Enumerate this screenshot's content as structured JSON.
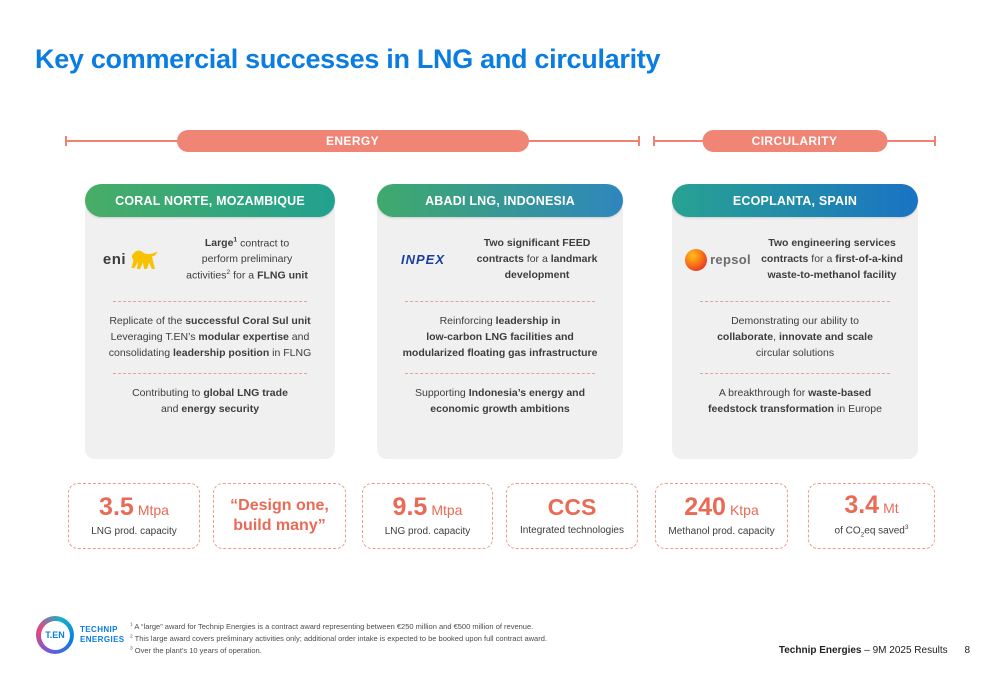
{
  "slide": {
    "title": "Key commercial successes in LNG and circularity",
    "page_number": "8",
    "footer_right_html": "<b>Technip Energies</b> – 9M 2025 Results",
    "logo": {
      "mark": "T.EN",
      "line1": "TECHNIP",
      "line2": "ENERGIES"
    }
  },
  "colors": {
    "brand_blue": "#0b7de1",
    "coral_pill": "#f08576",
    "coral_text": "#e96a55",
    "card_bg": "#f0f0f1",
    "card1_gradient": [
      "#48ad66",
      "#21a18f"
    ],
    "card2_gradient": [
      "#3faa6c",
      "#2e86bd"
    ],
    "card3_gradient": [
      "#28a292",
      "#1a73c4"
    ]
  },
  "bands": [
    {
      "label": "ENERGY"
    },
    {
      "label": "CIRCULARITY"
    }
  ],
  "cards": [
    {
      "header": "CORAL NORTE, MOZAMBIQUE",
      "logo_word": "eni",
      "intro_html": "<b>Large<sup>1</sup></b> contract to<br>perform preliminary<br>activities<sup>2</sup> for a <b>FLNG unit</b>",
      "mid_html": "Replicate of the <b>successful Coral Sul unit</b><br>Leveraging T.EN’s <b>modular expertise</b> and<br>consolidating <b>leadership position</b> in FLNG",
      "bottom_html": "Contributing to <b>global LNG trade</b><br>and <b>energy security</b>"
    },
    {
      "header": "ABADI LNG, INDONESIA",
      "logo_word": "INPEX",
      "intro_html": "<b>Two significant FEED<br>contracts</b> for a <b>landmark<br>development</b>",
      "mid_html": "Reinforcing <b>leadership in<br>low-carbon LNG facilities and<br>modularized floating gas infrastructure</b>",
      "bottom_html": "Supporting <b>Indonesia’s energy and<br>economic growth ambitions</b>"
    },
    {
      "header": "ECOPLANTA, SPAIN",
      "logo_word": "repsol",
      "intro_html": "<b>Two engineering services<br>contracts</b> for a <b>first-of-a-kind<br>waste-to-methanol facility</b>",
      "mid_html": "Demonstrating our ability to<br><b>collaborate</b>, <b>innovate and scale</b><br>circular solutions",
      "bottom_html": "A breakthrough for <b>waste-based<br>feedstock transformation</b> in Europe"
    }
  ],
  "stats": [
    {
      "value": "3.5",
      "unit": "Mtpa",
      "label_html": "LNG prod. capacity"
    },
    {
      "quote_html": "“Design one,<br>build many”"
    },
    {
      "value": "9.5",
      "unit": "Mtpa",
      "label_html": "LNG prod. capacity"
    },
    {
      "value": "CCS",
      "unit": "",
      "label_html": "Integrated technologies"
    },
    {
      "value": "240",
      "unit": "Ktpa",
      "label_html": "Methanol prod. capacity"
    },
    {
      "value": "3.4",
      "unit": "Mt",
      "label_html": "of CO<sub>2</sub>eq saved<sup>3</sup>"
    }
  ],
  "footnotes_html": [
    "<sup>1</sup> A “large” award for Technip Energies is a contract award representing between €250 million and €500 million of revenue.",
    "<sup>2</sup> This large award covers preliminary activities only; additional order intake is expected to be booked upon full contract award.",
    "<sup>3</sup> Over the plant’s 10 years of operation."
  ]
}
